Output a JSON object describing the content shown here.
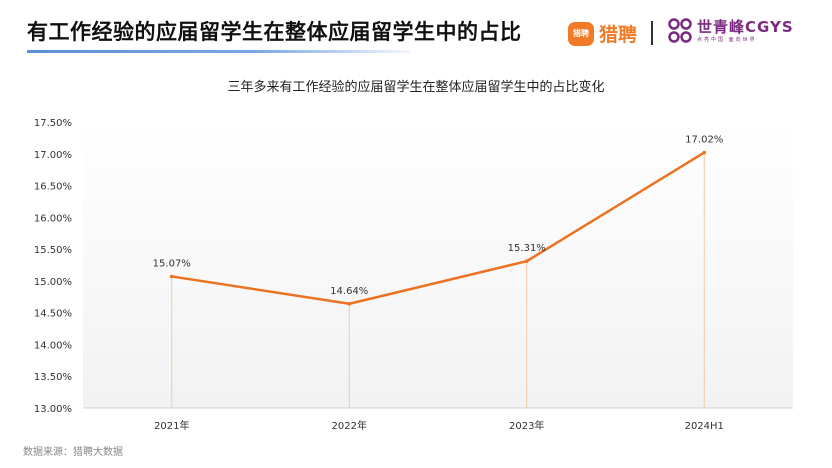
{
  "header": {
    "title": "有工作经验的应届留学生在整体应届留学生中的占比"
  },
  "brands": {
    "liepin": {
      "icon_text": "猎聘",
      "name": "猎聘",
      "color": "#f07a26"
    },
    "cgys": {
      "name": "世青峰CGYS",
      "slogan": "点亮中国  面向世界",
      "color": "#7a2b80"
    }
  },
  "chart_data": {
    "type": "line",
    "title": "三年多来有工作经验的应届留学生在整体应届留学生中的占比变化",
    "categories": [
      "2021年",
      "2022年",
      "2023年",
      "2024H1"
    ],
    "series": [
      {
        "values": [
          15.07,
          14.64,
          15.31,
          17.02
        ],
        "data_labels": [
          "15.07%",
          "14.64%",
          "15.31%",
          "17.02%"
        ],
        "color": "#ec7222"
      }
    ],
    "yticks": [
      "13.00%",
      "13.50%",
      "14.00%",
      "14.50%",
      "15.00%",
      "15.50%",
      "16.00%",
      "16.50%",
      "17.00%",
      "17.50%"
    ],
    "ylim": [
      13,
      17.5
    ],
    "grid": false,
    "legend": "none"
  },
  "footer": {
    "source": "数据来源：猎聘大数据"
  }
}
